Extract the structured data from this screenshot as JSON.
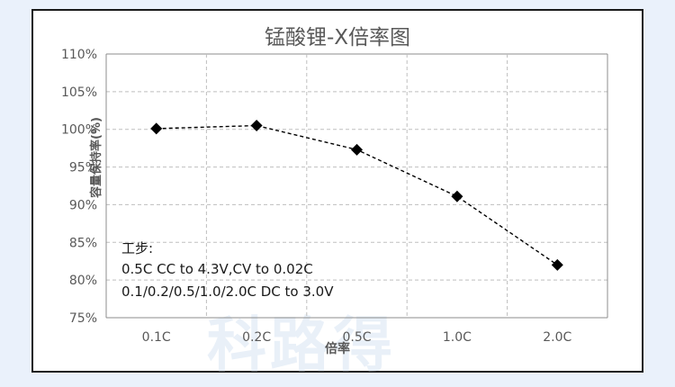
{
  "chart_data": {
    "type": "line",
    "title": "锰酸锂-X倍率图",
    "xlabel": "倍率",
    "ylabel": "容量保持率(%)",
    "categories": [
      "0.1C",
      "0.2C",
      "0.5C",
      "1.0C",
      "2.0C"
    ],
    "values": [
      100.1,
      100.5,
      97.3,
      91.1,
      82.0
    ],
    "ylim": [
      75,
      110
    ],
    "yticks": [
      75,
      80,
      85,
      90,
      95,
      100,
      105,
      110
    ],
    "yticklabels": [
      "75%",
      "80%",
      "85%",
      "90%",
      "95%",
      "100%",
      "105%",
      "110%"
    ],
    "grid": true,
    "marker": "diamond",
    "line_style": "dashed",
    "line_color": "#000000",
    "annotation": [
      "工步:",
      "0.5C CC to 4.3V,CV to 0.02C",
      "0.1/0.2/0.5/1.0/2.0C DC to 3.0V"
    ],
    "watermark": "科路得"
  }
}
